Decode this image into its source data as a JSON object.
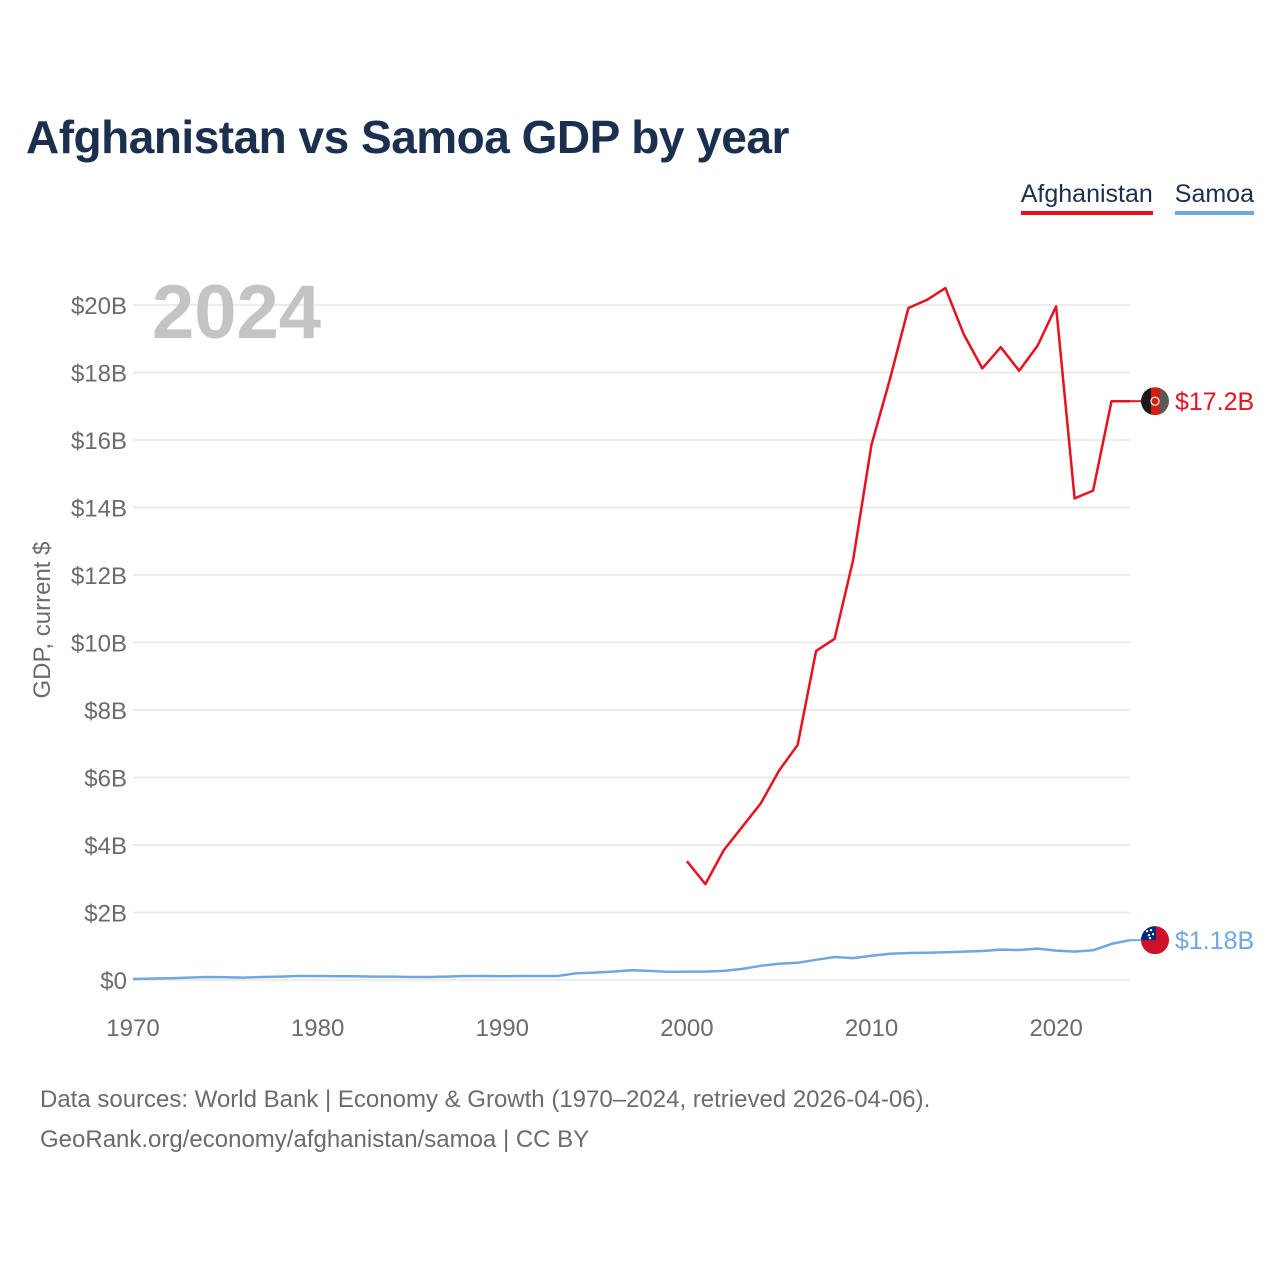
{
  "title": "Afghanistan vs Samoa GDP by year",
  "legend": [
    {
      "name": "Afghanistan",
      "color": "#e8111f"
    },
    {
      "name": "Samoa",
      "color": "#6fa8e0"
    }
  ],
  "source": {
    "line1": "Data sources: World Bank | Economy & Growth (1970–2024, retrieved 2026-04-06).",
    "line2": "GeoRank.org/economy/afghanistan/samoa | CC BY"
  },
  "chart_data": {
    "type": "line",
    "title": "Afghanistan vs Samoa GDP by year",
    "year_label": "2024",
    "xlabel": "",
    "ylabel": "GDP, current $",
    "xlim": [
      1970,
      2024
    ],
    "ylim": [
      0,
      20
    ],
    "y_unit": "billions USD",
    "grid": true,
    "x_ticks": [
      1970,
      1980,
      1990,
      2000,
      2010,
      2020
    ],
    "y_ticks": [
      {
        "value": 0,
        "label": "$0"
      },
      {
        "value": 2,
        "label": "$2B"
      },
      {
        "value": 4,
        "label": "$4B"
      },
      {
        "value": 6,
        "label": "$6B"
      },
      {
        "value": 8,
        "label": "$8B"
      },
      {
        "value": 10,
        "label": "$10B"
      },
      {
        "value": 12,
        "label": "$12B"
      },
      {
        "value": 14,
        "label": "$14B"
      },
      {
        "value": 16,
        "label": "$16B"
      },
      {
        "value": 18,
        "label": "$18B"
      },
      {
        "value": 20,
        "label": "$20B"
      }
    ],
    "series": [
      {
        "name": "Afghanistan",
        "color": "#e8111f",
        "end_label": "$17.2B",
        "flag_icon": "afghanistan-flag-icon",
        "x": [
          2000,
          2001,
          2002,
          2003,
          2004,
          2005,
          2006,
          2007,
          2008,
          2009,
          2010,
          2011,
          2012,
          2013,
          2014,
          2015,
          2016,
          2017,
          2018,
          2019,
          2020,
          2021,
          2022,
          2023,
          2024
        ],
        "values": [
          3.52,
          2.84,
          3.85,
          4.54,
          5.23,
          6.21,
          6.97,
          9.75,
          10.11,
          12.44,
          15.86,
          17.81,
          19.91,
          20.15,
          20.5,
          19.13,
          18.12,
          18.75,
          18.05,
          18.8,
          19.96,
          14.27,
          14.5,
          17.15,
          17.15
        ]
      },
      {
        "name": "Samoa",
        "color": "#6fa8e0",
        "end_label": "$1.18B",
        "flag_icon": "samoa-flag-icon",
        "x": [
          1970,
          1971,
          1972,
          1973,
          1974,
          1975,
          1976,
          1977,
          1978,
          1979,
          1980,
          1981,
          1982,
          1983,
          1984,
          1985,
          1986,
          1987,
          1988,
          1989,
          1990,
          1991,
          1992,
          1993,
          1994,
          1995,
          1996,
          1997,
          1998,
          1999,
          2000,
          2001,
          2002,
          2003,
          2004,
          2005,
          2006,
          2007,
          2008,
          2009,
          2010,
          2011,
          2012,
          2013,
          2014,
          2015,
          2016,
          2017,
          2018,
          2019,
          2020,
          2021,
          2022,
          2023,
          2024
        ],
        "values": [
          0.03,
          0.04,
          0.05,
          0.07,
          0.09,
          0.08,
          0.07,
          0.09,
          0.1,
          0.12,
          0.12,
          0.11,
          0.11,
          0.1,
          0.1,
          0.09,
          0.09,
          0.1,
          0.12,
          0.12,
          0.11,
          0.12,
          0.12,
          0.12,
          0.2,
          0.22,
          0.25,
          0.29,
          0.27,
          0.24,
          0.25,
          0.25,
          0.27,
          0.33,
          0.42,
          0.48,
          0.51,
          0.6,
          0.68,
          0.65,
          0.72,
          0.78,
          0.8,
          0.81,
          0.82,
          0.84,
          0.86,
          0.9,
          0.89,
          0.93,
          0.87,
          0.84,
          0.88,
          1.07,
          1.18
        ]
      }
    ]
  }
}
